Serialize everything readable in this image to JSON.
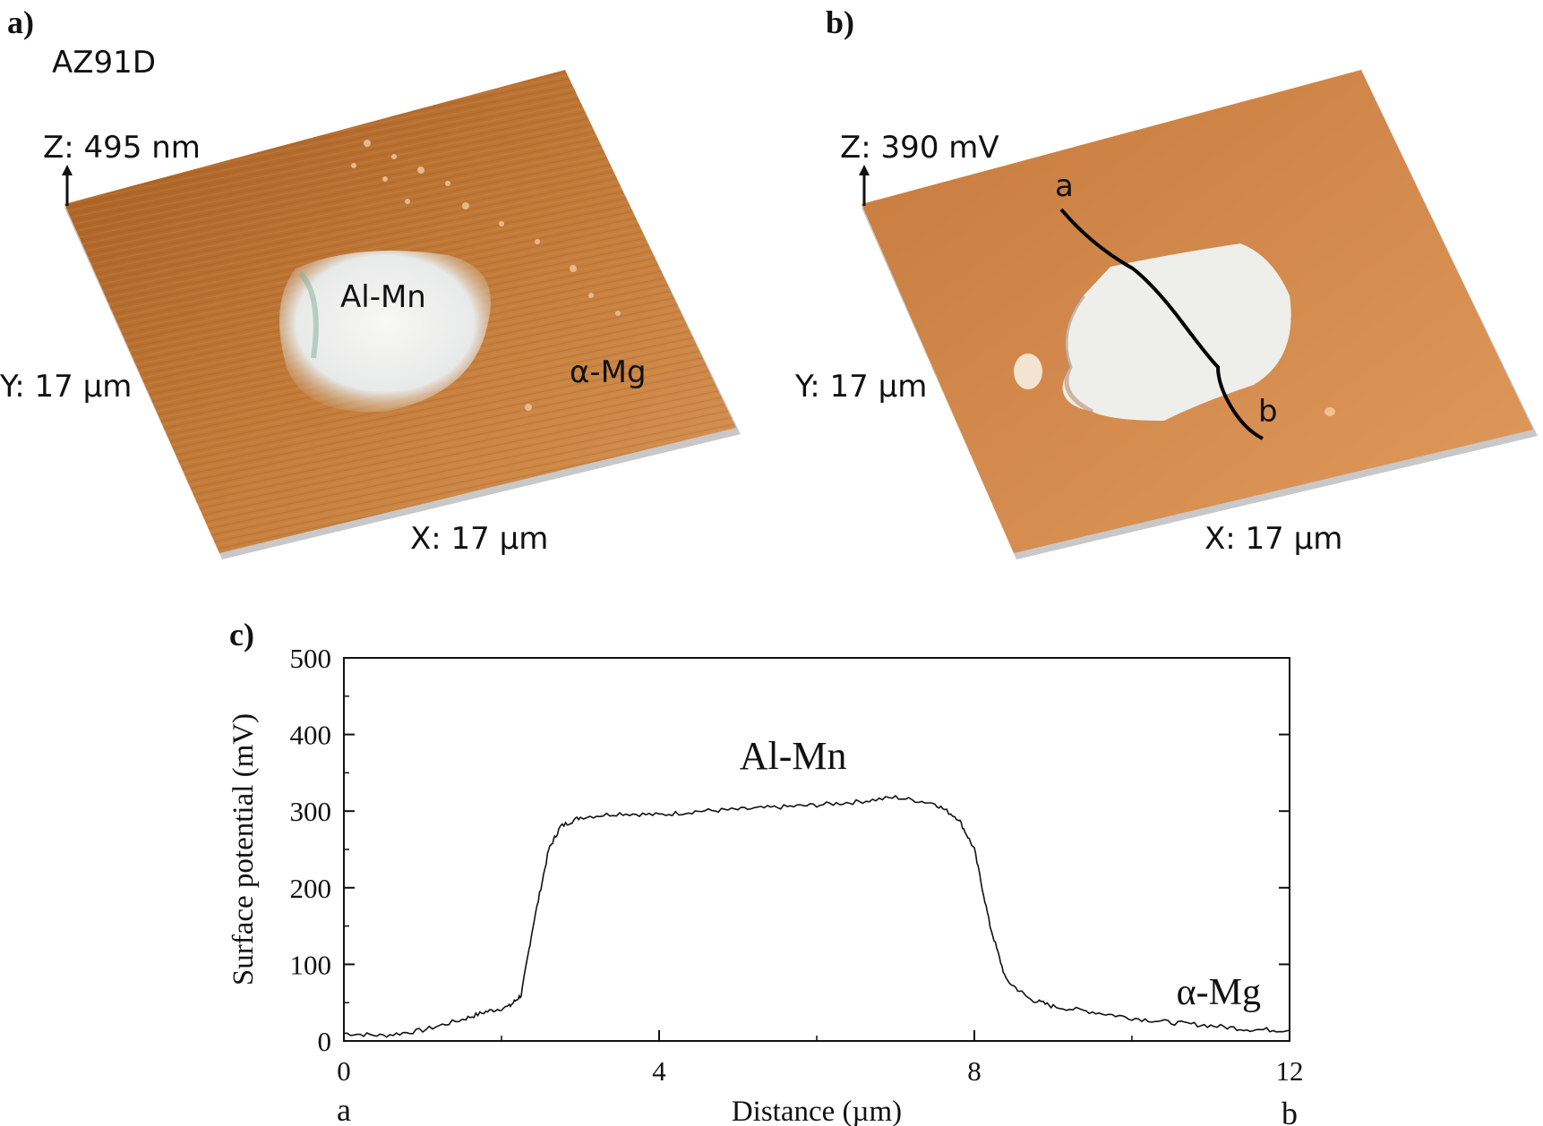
{
  "panels": {
    "a": {
      "letter": "a)",
      "sample": "AZ91D",
      "z_label": "Z: 495 nm",
      "y_label": "Y: 17 µm",
      "x_label": "X: 17 µm",
      "phase_particle": "Al-Mn",
      "phase_matrix": "α-Mg"
    },
    "b": {
      "letter": "b)",
      "z_label": "Z: 390 mV",
      "y_label": "Y: 17 µm",
      "x_label": "X: 17 µm",
      "line_start": "a",
      "line_end": "b"
    },
    "c": {
      "letter": "c)"
    }
  },
  "colors": {
    "surface_dark": "#b46a2a",
    "surface_light": "#e0a064",
    "particle": "#f4f4f0",
    "line": "#000000"
  },
  "chart_data": {
    "type": "line",
    "title": "",
    "xlabel": "Distance (µm)",
    "ylabel": "Surface potential (mV)",
    "xlim": [
      0,
      12
    ],
    "ylim": [
      0,
      500
    ],
    "xticks": [
      "0",
      "4",
      "8",
      "12"
    ],
    "yticks": [
      "0",
      "100",
      "200",
      "300",
      "400",
      "500"
    ],
    "x_end_labels": [
      "a",
      "b"
    ],
    "annotations": [
      "Al-Mn",
      "α-Mg"
    ],
    "grid": false,
    "series": [
      {
        "x": [
          0,
          0.5,
          1.0,
          1.5,
          1.8,
          2.1,
          2.25,
          2.4,
          2.6,
          2.75,
          3.0,
          3.5,
          4.0,
          4.5,
          5.0,
          5.5,
          6.0,
          6.5,
          7.0,
          7.5,
          7.8,
          8.0,
          8.2,
          8.4,
          8.7,
          9.0,
          9.5,
          10.0,
          10.5,
          11.0,
          11.5,
          12.0
        ],
        "y": [
          10,
          7,
          14,
          28,
          38,
          45,
          60,
          150,
          250,
          280,
          292,
          297,
          295,
          300,
          302,
          305,
          308,
          312,
          318,
          310,
          290,
          250,
          150,
          80,
          55,
          45,
          38,
          30,
          24,
          20,
          15,
          14
        ]
      }
    ]
  }
}
